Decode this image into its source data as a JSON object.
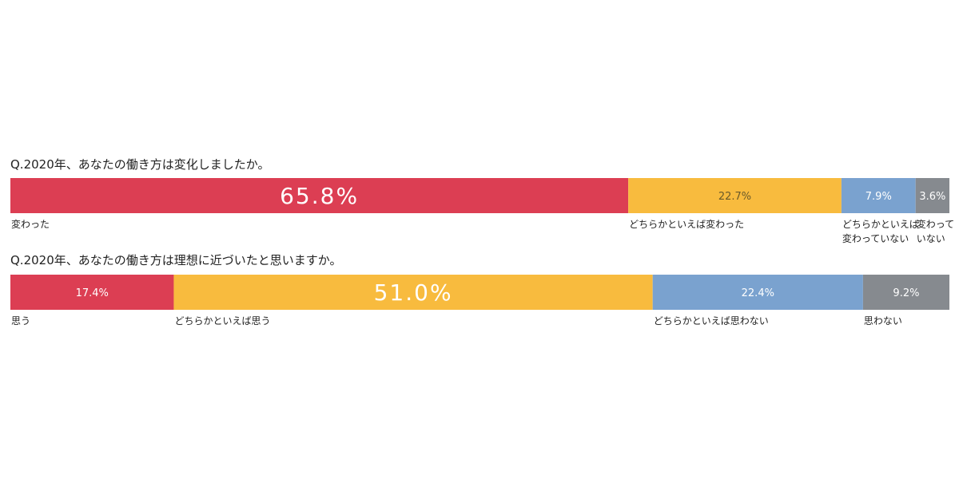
{
  "colors": {
    "seg1": "#dc3e53",
    "seg2": "#f8bb3e",
    "seg3": "#7aa2cf",
    "seg4": "#868a8f"
  },
  "chart_data": [
    {
      "type": "bar",
      "stacked": true,
      "orientation": "horizontal",
      "title": "Q.2020年、あなたの働き方は変化しましたか。",
      "categories": [
        "変わった",
        "どちらかといえば変わった",
        "どちらかといえば\n変わっていない",
        "変わって\nいない"
      ],
      "values": [
        65.8,
        22.7,
        7.9,
        3.6
      ],
      "value_labels": [
        "65.8%",
        "22.7%",
        "7.9%",
        "3.6%"
      ],
      "unit": "%"
    },
    {
      "type": "bar",
      "stacked": true,
      "orientation": "horizontal",
      "title": "Q.2020年、あなたの働き方は理想に近づいたと思いますか。",
      "categories": [
        "思う",
        "どちらかといえば思う",
        "どちらかといえば思わない",
        "思わない"
      ],
      "values": [
        17.4,
        51.0,
        22.4,
        9.2
      ],
      "value_labels": [
        "17.4%",
        "51.0%",
        "22.4%",
        "9.2%"
      ],
      "unit": "%"
    }
  ]
}
